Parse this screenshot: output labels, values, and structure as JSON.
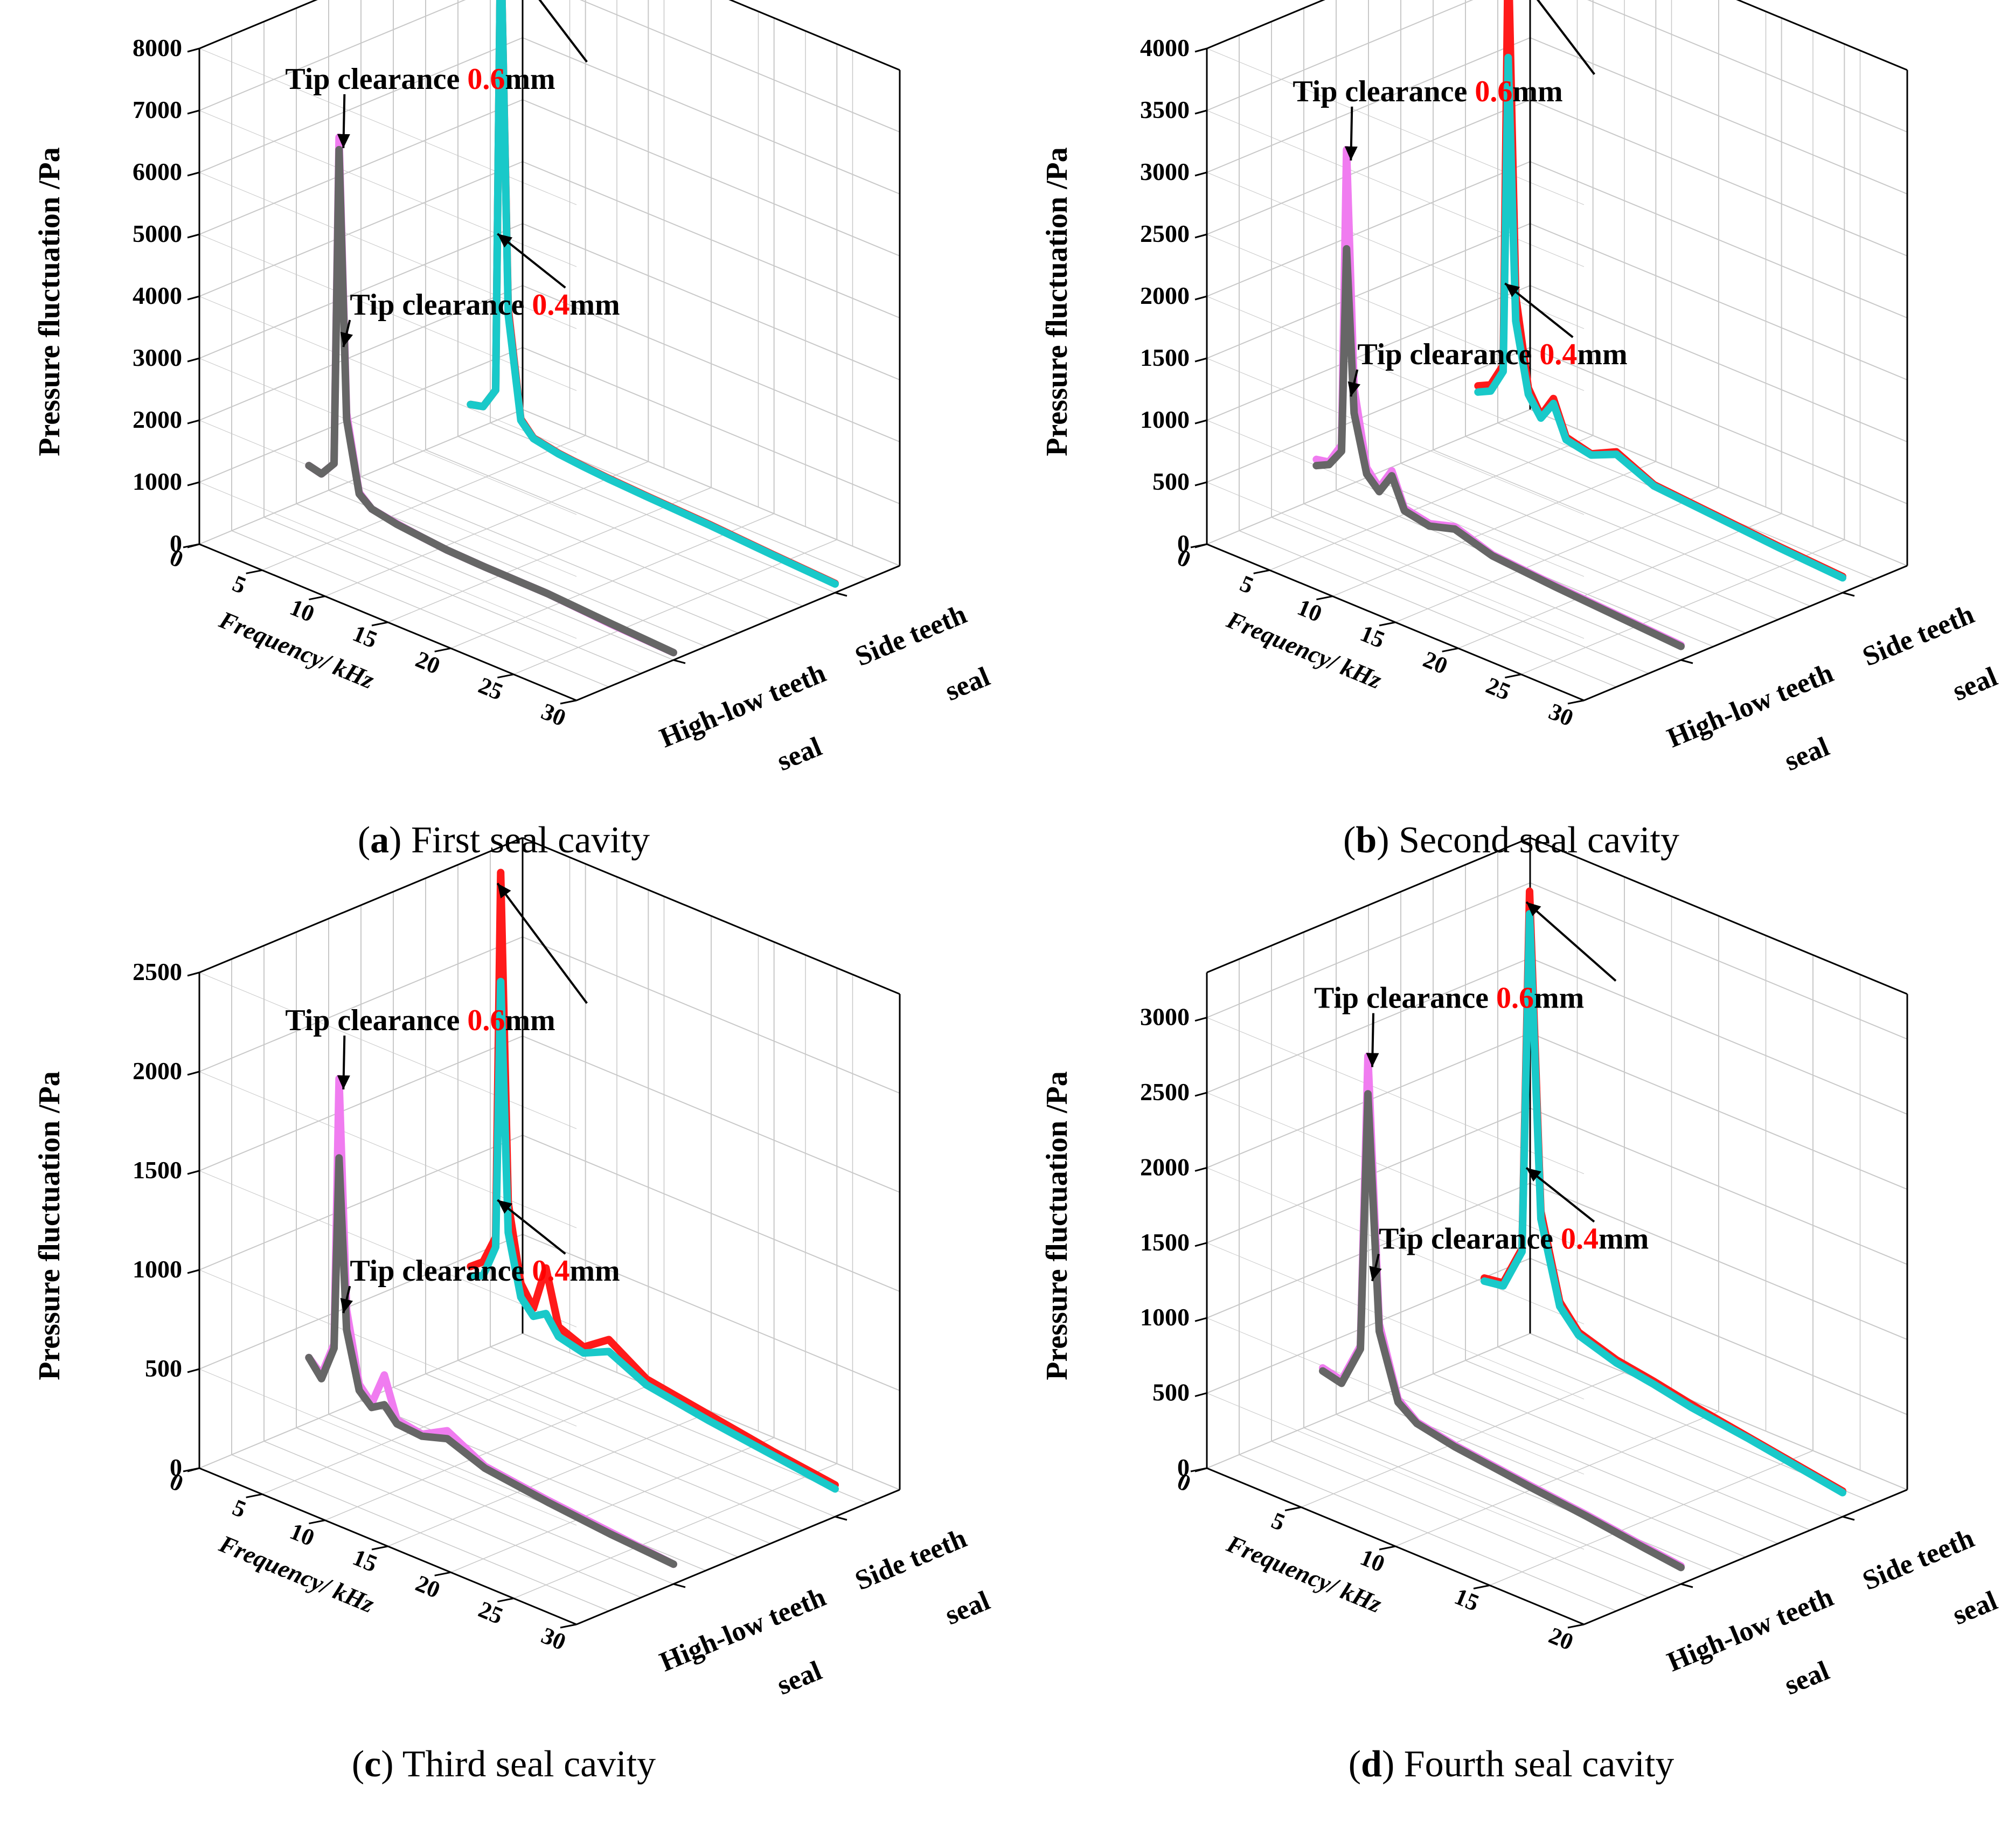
{
  "colors": {
    "tip06_side": "#ff1a1a",
    "tip04_side": "#19c9c9",
    "tip06_highlow": "#f07cf0",
    "tip04_highlow": "#666666",
    "red_text": "#ff0000",
    "grid": "#c8c8c8",
    "axis": "#000000"
  },
  "shared": {
    "ylabel": "Pressure fluctuation /Pa",
    "xlabel": "Frequency/ kHz",
    "series_axis_labels": [
      [
        "Side teeth",
        "seal"
      ],
      [
        "High-low teeth",
        "seal"
      ]
    ],
    "annotation_prefix": "Tip clearance ",
    "annotation_unit": "mm",
    "annotation_values": [
      "0.6",
      "0.4"
    ]
  },
  "chart_data": [
    {
      "type": "line",
      "label_letter": "a",
      "caption": "First seal cavity",
      "ylabel": "Pressure fluctuation /Pa",
      "xlabel": "Frequency/ kHz",
      "ylim": [
        0,
        8000
      ],
      "yticks": [
        0,
        1000,
        2000,
        3000,
        4000,
        5000,
        6000,
        7000,
        8000
      ],
      "xlim": [
        0,
        30
      ],
      "xticks": [
        0,
        5,
        10,
        15,
        20,
        25,
        30
      ],
      "zcategories": [
        "High-low teeth seal",
        "Side teeth seal"
      ],
      "grid": true,
      "series": [
        {
          "name": "Tip clearance 0.6mm",
          "z": "High-low teeth seal",
          "color": "#f07cf0",
          "peak": {
            "x": 3.4,
            "y": 6200
          },
          "x": [
            1,
            2,
            3,
            3.4,
            4,
            5,
            6,
            8,
            10,
            12,
            15,
            20,
            25,
            30
          ],
          "y": [
            700,
            650,
            900,
            6200,
            1800,
            600,
            420,
            350,
            300,
            260,
            240,
            230,
            160,
            120
          ]
        },
        {
          "name": "Tip clearance 0.4mm",
          "z": "High-low teeth seal",
          "color": "#666666",
          "peak": {
            "x": 3.4,
            "y": 6000
          },
          "x": [
            1,
            2,
            3,
            3.4,
            4,
            5,
            6,
            8,
            10,
            12,
            15,
            20,
            25,
            30
          ],
          "y": [
            700,
            650,
            900,
            6000,
            1700,
            580,
            420,
            340,
            300,
            260,
            240,
            230,
            170,
            120
          ]
        },
        {
          "name": "Tip clearance 0.6mm",
          "z": "Side teeth seal",
          "color": "#ff1a1a",
          "peak": {
            "x": 3.4,
            "y": 8800
          },
          "x": [
            1,
            2,
            3,
            3.4,
            4,
            5,
            6,
            8,
            10,
            12,
            15,
            20,
            25,
            30
          ],
          "y": [
            600,
            650,
            1000,
            8800,
            2400,
            700,
            480,
            400,
            360,
            330,
            300,
            260,
            200,
            150
          ]
        },
        {
          "name": "Tip clearance 0.4mm",
          "z": "Side teeth seal",
          "color": "#19c9c9",
          "peak": {
            "x": 3.4,
            "y": 8500
          },
          "x": [
            1,
            2,
            3,
            3.4,
            4,
            5,
            6,
            8,
            10,
            12,
            15,
            20,
            25,
            30
          ],
          "y": [
            600,
            650,
            1000,
            8500,
            2300,
            680,
            470,
            390,
            350,
            320,
            290,
            250,
            190,
            140
          ]
        }
      ]
    },
    {
      "type": "line",
      "label_letter": "b",
      "caption": "Second seal cavity",
      "ylabel": "Pressure fluctuation /Pa",
      "xlabel": "Frequency/ kHz",
      "ylim": [
        0,
        4000
      ],
      "yticks": [
        0,
        500,
        1000,
        1500,
        2000,
        2500,
        3000,
        3500,
        4000
      ],
      "xlim": [
        0,
        30
      ],
      "xticks": [
        0,
        5,
        10,
        15,
        20,
        25,
        30
      ],
      "zcategories": [
        "High-low teeth seal",
        "Side teeth seal"
      ],
      "grid": true,
      "series": [
        {
          "name": "Tip clearance 0.6mm",
          "z": "High-low teeth seal",
          "color": "#f07cf0",
          "peak": {
            "x": 3.4,
            "y": 3000
          },
          "x": [
            1,
            2,
            3,
            3.4,
            4,
            5,
            6,
            7,
            8,
            10,
            12,
            15,
            20,
            25,
            30
          ],
          "y": [
            400,
            420,
            600,
            3000,
            1100,
            500,
            380,
            560,
            300,
            260,
            320,
            220,
            180,
            150,
            120
          ]
        },
        {
          "name": "Tip clearance 0.4mm",
          "z": "High-low teeth seal",
          "color": "#666666",
          "peak": {
            "x": 3.4,
            "y": 2200
          },
          "x": [
            1,
            2,
            3,
            3.4,
            4,
            5,
            6,
            7,
            8,
            10,
            12,
            15,
            20,
            25,
            30
          ],
          "y": [
            350,
            400,
            550,
            2200,
            900,
            450,
            350,
            520,
            280,
            240,
            300,
            210,
            170,
            140,
            110
          ]
        },
        {
          "name": "Tip clearance 0.6mm",
          "z": "Side teeth seal",
          "color": "#ff1a1a",
          "peak": {
            "x": 3.4,
            "y": 4100
          },
          "x": [
            1,
            2,
            3,
            3.4,
            4,
            5,
            6,
            7,
            8,
            10,
            12,
            15,
            20,
            25,
            30
          ],
          "y": [
            450,
            500,
            700,
            4100,
            1300,
            600,
            420,
            600,
            330,
            280,
            380,
            240,
            200,
            160,
            130
          ]
        },
        {
          "name": "Tip clearance 0.4mm",
          "z": "Side teeth seal",
          "color": "#19c9c9",
          "peak": {
            "x": 3.4,
            "y": 3200
          },
          "x": [
            1,
            2,
            3,
            3.4,
            4,
            5,
            6,
            7,
            8,
            10,
            12,
            15,
            20,
            25,
            30
          ],
          "y": [
            400,
            450,
            650,
            3200,
            1100,
            550,
            400,
            560,
            310,
            270,
            360,
            230,
            190,
            150,
            120
          ]
        }
      ]
    },
    {
      "type": "line",
      "label_letter": "c",
      "caption": "Third seal cavity",
      "ylabel": "Pressure fluctuation /Pa",
      "xlabel": "Frequency/ kHz",
      "ylim": [
        0,
        2500
      ],
      "yticks": [
        0,
        500,
        1000,
        1500,
        2000,
        2500
      ],
      "xlim": [
        0,
        30
      ],
      "xticks": [
        0,
        5,
        10,
        15,
        20,
        25,
        30
      ],
      "zcategories": [
        "High-low teeth seal",
        "Side teeth seal"
      ],
      "grid": true,
      "series": [
        {
          "name": "Tip clearance 0.6mm",
          "z": "High-low teeth seal",
          "color": "#f07cf0",
          "peak": {
            "x": 3.4,
            "y": 1850
          },
          "x": [
            1,
            2,
            3,
            3.4,
            4,
            5,
            6,
            7,
            8,
            10,
            12,
            15,
            20,
            25,
            30
          ],
          "y": [
            380,
            320,
            500,
            1850,
            700,
            350,
            280,
            450,
            250,
            230,
            300,
            200,
            160,
            130,
            100
          ]
        },
        {
          "name": "Tip clearance 0.4mm",
          "z": "High-low teeth seal",
          "color": "#666666",
          "peak": {
            "x": 3.4,
            "y": 1450
          },
          "x": [
            1,
            2,
            3,
            3.4,
            4,
            5,
            6,
            7,
            8,
            10,
            12,
            15,
            20,
            25,
            30
          ],
          "y": [
            380,
            300,
            480,
            1450,
            600,
            320,
            260,
            300,
            230,
            220,
            260,
            190,
            150,
            120,
            100
          ]
        },
        {
          "name": "Tip clearance 0.6mm",
          "z": "Side teeth seal",
          "color": "#ff1a1a",
          "peak": {
            "x": 3.4,
            "y": 2550
          },
          "x": [
            1,
            2,
            3,
            3.4,
            4,
            5,
            6,
            7,
            8,
            10,
            12,
            15,
            20,
            25,
            30
          ],
          "y": [
            500,
            550,
            700,
            2550,
            900,
            520,
            420,
            650,
            380,
            330,
            420,
            300,
            250,
            200,
            160
          ]
        },
        {
          "name": "Tip clearance 0.4mm",
          "z": "Side teeth seal",
          "color": "#19c9c9",
          "peak": {
            "x": 3.4,
            "y": 2000
          },
          "x": [
            1,
            2,
            3,
            3.4,
            4,
            5,
            6,
            7,
            8,
            10,
            12,
            15,
            20,
            25,
            30
          ],
          "y": [
            450,
            480,
            650,
            2000,
            750,
            450,
            380,
            420,
            330,
            300,
            360,
            270,
            220,
            180,
            140
          ]
        }
      ]
    },
    {
      "type": "line",
      "label_letter": "d",
      "caption": "Fourth seal cavity",
      "ylabel": "Pressure fluctuation /Pa",
      "xlabel": "Frequency/ kHz",
      "ylim": [
        0,
        3300
      ],
      "yticks": [
        0,
        500,
        1000,
        1500,
        2000,
        2500,
        3000
      ],
      "xlim": [
        0,
        20
      ],
      "xticks": [
        0,
        5,
        10,
        15,
        20
      ],
      "zcategories": [
        "High-low teeth seal",
        "Side teeth seal"
      ],
      "grid": true,
      "series": [
        {
          "name": "Tip clearance 0.6mm",
          "z": "High-low teeth seal",
          "color": "#f07cf0",
          "peak": {
            "x": 3.4,
            "y": 2650
          },
          "x": [
            1,
            2,
            3,
            3.4,
            4,
            5,
            6,
            8,
            10,
            12,
            15,
            18,
            20
          ],
          "y": [
            450,
            420,
            700,
            2650,
            900,
            450,
            350,
            300,
            270,
            240,
            200,
            150,
            120
          ]
        },
        {
          "name": "Tip clearance 0.4mm",
          "z": "High-low teeth seal",
          "color": "#666666",
          "peak": {
            "x": 3.4,
            "y": 2400
          },
          "x": [
            1,
            2,
            3,
            3.4,
            4,
            5,
            6,
            8,
            10,
            12,
            15,
            18,
            20
          ],
          "y": [
            430,
            400,
            680,
            2400,
            850,
            430,
            340,
            290,
            260,
            230,
            190,
            140,
            110
          ]
        },
        {
          "name": "Tip clearance 0.6mm",
          "z": "Side teeth seal",
          "color": "#ff1a1a",
          "peak": {
            "x": 3.4,
            "y": 3300
          },
          "x": [
            1,
            2,
            3,
            3.4,
            4,
            5,
            6,
            8,
            10,
            12,
            15,
            18,
            20
          ],
          "y": [
            600,
            620,
            900,
            3300,
            1200,
            650,
            500,
            420,
            380,
            330,
            270,
            210,
            170
          ]
        },
        {
          "name": "Tip clearance 0.4mm",
          "z": "Side teeth seal",
          "color": "#19c9c9",
          "peak": {
            "x": 3.4,
            "y": 3150
          },
          "x": [
            1,
            2,
            3,
            3.4,
            4,
            5,
            6,
            8,
            10,
            12,
            15,
            18,
            20
          ],
          "y": [
            580,
            600,
            880,
            3150,
            1150,
            620,
            480,
            400,
            360,
            310,
            260,
            200,
            160
          ]
        }
      ]
    }
  ]
}
